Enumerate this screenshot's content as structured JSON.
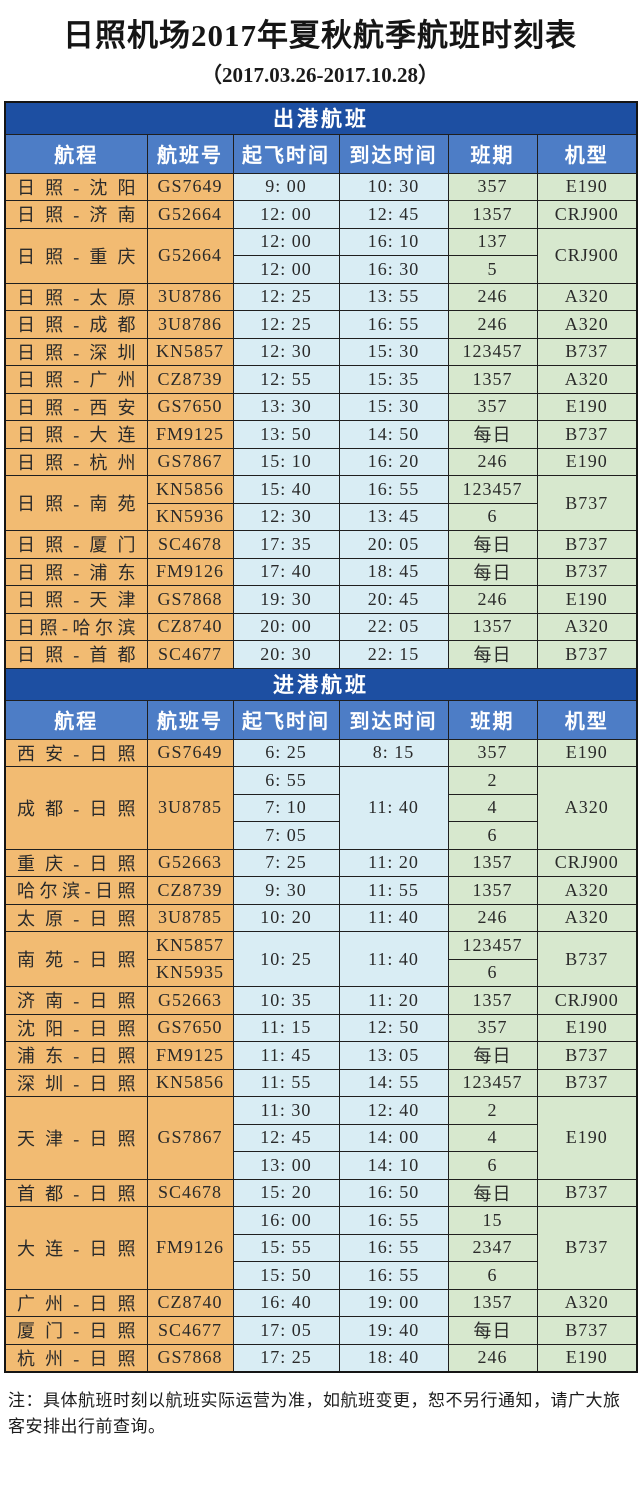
{
  "title": "日照机场2017年夏秋航季航班时刻表",
  "subtitle": "（2017.03.26-2017.10.28）",
  "note": "注：具体航班时刻以航班实际运营为准，如航班变更，恕不另行通知，请广大旅客安排出行前查询。",
  "colors": {
    "section_header_bg": "#1d4fa2",
    "column_header_bg": "#4d7dc6",
    "route_column_bg": "#f2bb72",
    "time_column_bg": "#d9edf4",
    "days_column_bg": "#d7e8ce",
    "header_text": "#ffffff",
    "body_text": "#2a2a2a",
    "grid_border": "#1f1f1f"
  },
  "columns": [
    "航程",
    "航班号",
    "起飞时间",
    "到达时间",
    "班期",
    "机型"
  ],
  "sections": [
    {
      "header": "出港航班",
      "groups": [
        {
          "row": [
            "日照-沈阳",
            "GS7649",
            "9: 00",
            "10: 30",
            "357",
            "E190"
          ]
        },
        {
          "row": [
            "日照-济南",
            "G52664",
            "12: 00",
            "12: 45",
            "1357",
            "CRJ900"
          ]
        },
        {
          "rows": 2,
          "cols": [
            [
              [
                "日照-重庆",
                2
              ]
            ],
            [
              [
                "G52664",
                2
              ]
            ],
            [
              [
                "12: 00",
                1
              ],
              [
                "12: 00",
                1
              ]
            ],
            [
              [
                "16: 10",
                1
              ],
              [
                "16: 30",
                1
              ]
            ],
            [
              [
                "137",
                1
              ],
              [
                "5",
                1
              ]
            ],
            [
              [
                "CRJ900",
                2
              ]
            ]
          ]
        },
        {
          "row": [
            "日照-太原",
            "3U8786",
            "12: 25",
            "13: 55",
            "246",
            "A320"
          ]
        },
        {
          "row": [
            "日照-成都",
            "3U8786",
            "12: 25",
            "16: 55",
            "246",
            "A320"
          ]
        },
        {
          "row": [
            "日照-深圳",
            "KN5857",
            "12: 30",
            "15: 30",
            "123457",
            "B737"
          ]
        },
        {
          "row": [
            "日照-广州",
            "CZ8739",
            "12: 55",
            "15: 35",
            "1357",
            "A320"
          ]
        },
        {
          "row": [
            "日照-西安",
            "GS7650",
            "13: 30",
            "15: 30",
            "357",
            "E190"
          ]
        },
        {
          "row": [
            "日照-大连",
            "FM9125",
            "13: 50",
            "14: 50",
            "每日",
            "B737"
          ]
        },
        {
          "row": [
            "日照-杭州",
            "GS7867",
            "15: 10",
            "16: 20",
            "246",
            "E190"
          ]
        },
        {
          "rows": 2,
          "cols": [
            [
              [
                "日照-南苑",
                2
              ]
            ],
            [
              [
                "KN5856",
                1
              ],
              [
                "KN5936",
                1
              ]
            ],
            [
              [
                "15: 40",
                1
              ],
              [
                "12: 30",
                1
              ]
            ],
            [
              [
                "16: 55",
                1
              ],
              [
                "13: 45",
                1
              ]
            ],
            [
              [
                "123457",
                1
              ],
              [
                "6",
                1
              ]
            ],
            [
              [
                "B737",
                2
              ]
            ]
          ]
        },
        {
          "row": [
            "日照-厦门",
            "SC4678",
            "17: 35",
            "20: 05",
            "每日",
            "B737"
          ]
        },
        {
          "row": [
            "日照-浦东",
            "FM9126",
            "17: 40",
            "18: 45",
            "每日",
            "B737"
          ]
        },
        {
          "row": [
            "日照-天津",
            "GS7868",
            "19: 30",
            "20: 45",
            "246",
            "E190"
          ]
        },
        {
          "row": [
            "日照-哈尔滨",
            "CZ8740",
            "20: 00",
            "22: 05",
            "1357",
            "A320"
          ]
        },
        {
          "row": [
            "日照-首都",
            "SC4677",
            "20: 30",
            "22: 15",
            "每日",
            "B737"
          ]
        }
      ]
    },
    {
      "header": "进港航班",
      "groups": [
        {
          "row": [
            "西安-日照",
            "GS7649",
            "6: 25",
            "8: 15",
            "357",
            "E190"
          ]
        },
        {
          "rows": 3,
          "cols": [
            [
              [
                "成都-日照",
                3
              ]
            ],
            [
              [
                "3U8785",
                3
              ]
            ],
            [
              [
                "6: 55",
                1
              ],
              [
                "7: 10",
                1
              ],
              [
                "7: 05",
                1
              ]
            ],
            [
              [
                "11: 40",
                3
              ]
            ],
            [
              [
                "2",
                1
              ],
              [
                "4",
                1
              ],
              [
                "6",
                1
              ]
            ],
            [
              [
                "A320",
                3
              ]
            ]
          ]
        },
        {
          "row": [
            "重庆-日照",
            "G52663",
            "7: 25",
            "11: 20",
            "1357",
            "CRJ900"
          ]
        },
        {
          "row": [
            "哈尔滨-日照",
            "CZ8739",
            "9: 30",
            "11: 55",
            "1357",
            "A320"
          ]
        },
        {
          "row": [
            "太原-日照",
            "3U8785",
            "10: 20",
            "11: 40",
            "246",
            "A320"
          ]
        },
        {
          "rows": 2,
          "cols": [
            [
              [
                "南苑-日照",
                2
              ]
            ],
            [
              [
                "KN5857",
                1
              ],
              [
                "KN5935",
                1
              ]
            ],
            [
              [
                "10: 25",
                2
              ]
            ],
            [
              [
                "11: 40",
                2
              ]
            ],
            [
              [
                "123457",
                1
              ],
              [
                "6",
                1
              ]
            ],
            [
              [
                "B737",
                2
              ]
            ]
          ]
        },
        {
          "row": [
            "济南-日照",
            "G52663",
            "10: 35",
            "11: 20",
            "1357",
            "CRJ900"
          ]
        },
        {
          "row": [
            "沈阳-日照",
            "GS7650",
            "11: 15",
            "12: 50",
            "357",
            "E190"
          ]
        },
        {
          "row": [
            "浦东-日照",
            "FM9125",
            "11: 45",
            "13: 05",
            "每日",
            "B737"
          ]
        },
        {
          "row": [
            "深圳-日照",
            "KN5856",
            "11: 55",
            "14: 55",
            "123457",
            "B737"
          ]
        },
        {
          "rows": 3,
          "cols": [
            [
              [
                "天津-日照",
                3
              ]
            ],
            [
              [
                "GS7867",
                3
              ]
            ],
            [
              [
                "11: 30",
                1
              ],
              [
                "12: 45",
                1
              ],
              [
                "13: 00",
                1
              ]
            ],
            [
              [
                "12: 40",
                1
              ],
              [
                "14: 00",
                1
              ],
              [
                "14: 10",
                1
              ]
            ],
            [
              [
                "2",
                1
              ],
              [
                "4",
                1
              ],
              [
                "6",
                1
              ]
            ],
            [
              [
                "E190",
                3
              ]
            ]
          ]
        },
        {
          "row": [
            "首都-日照",
            "SC4678",
            "15: 20",
            "16: 50",
            "每日",
            "B737"
          ]
        },
        {
          "rows": 3,
          "cols": [
            [
              [
                "大连-日照",
                3
              ]
            ],
            [
              [
                "FM9126",
                3
              ]
            ],
            [
              [
                "16: 00",
                1
              ],
              [
                "15: 55",
                1
              ],
              [
                "15: 50",
                1
              ]
            ],
            [
              [
                "16: 55",
                1
              ],
              [
                "16: 55",
                1
              ],
              [
                "16: 55",
                1
              ]
            ],
            [
              [
                "15",
                1
              ],
              [
                "2347",
                1
              ],
              [
                "6",
                1
              ]
            ],
            [
              [
                "B737",
                3
              ]
            ]
          ]
        },
        {
          "row": [
            "广州-日照",
            "CZ8740",
            "16: 40",
            "19: 00",
            "1357",
            "A320"
          ]
        },
        {
          "row": [
            "厦门-日照",
            "SC4677",
            "17: 05",
            "19: 40",
            "每日",
            "B737"
          ]
        },
        {
          "row": [
            "杭州-日照",
            "GS7868",
            "17: 25",
            "18: 40",
            "246",
            "E190"
          ]
        }
      ]
    }
  ]
}
